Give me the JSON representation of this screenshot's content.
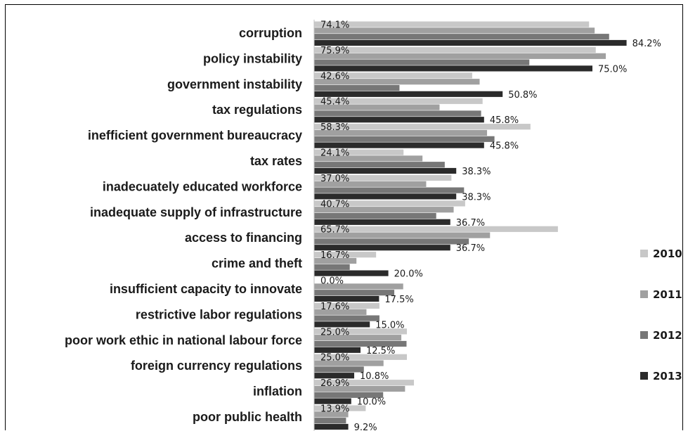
{
  "chart_data": {
    "type": "bar",
    "orientation": "horizontal",
    "categories": [
      "corruption",
      "policy instability",
      "government instability",
      "tax regulations",
      "inefficient government bureaucracy",
      "tax rates",
      "inadecuately educated workforce",
      "inadequate supply of infrastructure",
      "access to financing",
      "crime and theft",
      "insufficient capacity to innovate",
      "restrictive labor regulations",
      "poor work ethic in national labour force",
      "foreign currency regulations",
      "inflation",
      "poor public health"
    ],
    "series": [
      {
        "name": "2010",
        "color": "#c8c8c8",
        "values": [
          74.1,
          75.9,
          42.6,
          45.4,
          58.3,
          24.1,
          37.0,
          40.7,
          65.7,
          16.7,
          0.0,
          17.6,
          25.0,
          25.0,
          26.9,
          13.9
        ],
        "labels": [
          "74.1%",
          "75.9%",
          "42.6%",
          "45.4%",
          "58.3%",
          "24.1%",
          "37.0%",
          "40.7%",
          "65.7%",
          "16.7%",
          "0.0%",
          "17.6%",
          "25.0%",
          "25.0%",
          "26.9%",
          "13.9%"
        ]
      },
      {
        "name": "2011",
        "color": "#a0a0a0",
        "values": [
          75.6,
          78.6,
          44.6,
          33.8,
          46.6,
          29.2,
          30.2,
          37.6,
          47.4,
          11.4,
          24.0,
          14.1,
          23.5,
          18.7,
          24.5,
          9.2
        ]
      },
      {
        "name": "2012",
        "color": "#777777",
        "values": [
          79.5,
          58.0,
          23.0,
          45.0,
          48.6,
          35.2,
          40.4,
          32.9,
          41.7,
          9.6,
          21.6,
          17.6,
          24.9,
          13.4,
          18.6,
          8.6
        ]
      },
      {
        "name": "2013",
        "color": "#2b2b2b",
        "values": [
          84.2,
          75.0,
          50.8,
          45.8,
          45.8,
          38.3,
          38.3,
          36.7,
          36.7,
          20.0,
          17.5,
          15.0,
          12.5,
          10.8,
          10.0,
          9.2
        ],
        "labels": [
          "84.2%",
          "75.0%",
          "50.8%",
          "45.8%",
          "45.8%",
          "38.3%",
          "38.3%",
          "36.7%",
          "36.7%",
          "20.0%",
          "17.5%",
          "15.0%",
          "12.5%",
          "10.8%",
          "10.0%",
          "9.2%"
        ]
      }
    ],
    "xlim": [
      0,
      100
    ],
    "grid": false,
    "legend_position": "right"
  }
}
